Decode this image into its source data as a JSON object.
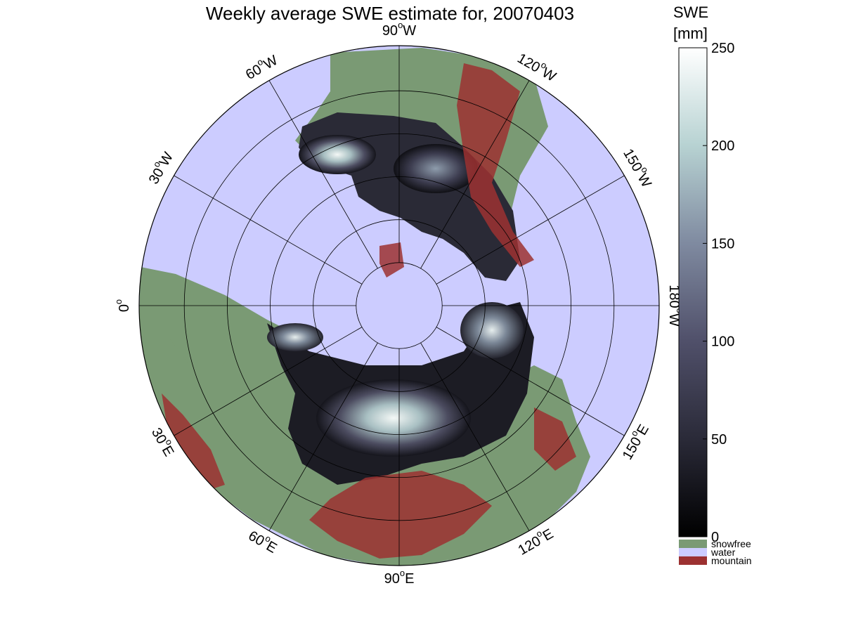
{
  "title": "Weekly average SWE estimate for, 20070403",
  "date": "20070403",
  "map": {
    "projection": "north polar stereographic",
    "center": "North Pole",
    "longitude_labels": [
      {
        "text": "90",
        "dir": "W",
        "lon_w": 90
      },
      {
        "text": "120",
        "dir": "W",
        "lon_w": 120
      },
      {
        "text": "150",
        "dir": "W",
        "lon_w": 150
      },
      {
        "text": "180",
        "dir": "W",
        "lon_w": 180
      },
      {
        "text": "150",
        "dir": "E",
        "lon_w": 210
      },
      {
        "text": "120",
        "dir": "E",
        "lon_w": 240
      },
      {
        "text": "90",
        "dir": "E",
        "lon_w": 270
      },
      {
        "text": "60",
        "dir": "E",
        "lon_w": 300
      },
      {
        "text": "30",
        "dir": "E",
        "lon_w": 330
      },
      {
        "text": "0",
        "dir": "",
        "lon_w": 0
      },
      {
        "text": "30",
        "dir": "W",
        "lon_w": 30
      },
      {
        "text": "60",
        "dir": "W",
        "lon_w": 60
      }
    ],
    "meridian_step_deg": 30,
    "parallel_count": 5,
    "classes": [
      {
        "name": "snowfree",
        "color": "#7a9a74"
      },
      {
        "name": "water",
        "color": "#ccccff"
      },
      {
        "name": "mountain",
        "color": "#9c3131"
      }
    ]
  },
  "colorbar": {
    "title_line1": "SWE",
    "title_line2": "[mm]",
    "min": 0,
    "max": 250,
    "ticks": [
      0,
      50,
      100,
      150,
      200,
      250
    ],
    "gradient_stops": [
      "#000000",
      "#2a2a38",
      "#50506a",
      "#7f8aa0",
      "#b7d2d2",
      "#ffffff"
    ],
    "legend": [
      {
        "label": "snowfree",
        "color": "#7a9a74"
      },
      {
        "label": "water",
        "color": "#ccccff"
      },
      {
        "label": "mountain",
        "color": "#9c3131"
      }
    ]
  },
  "chart_data": {
    "type": "heatmap",
    "title": "Weekly average SWE estimate for, 20070403",
    "colorbar_label": "SWE [mm]",
    "zlim": [
      0,
      250
    ],
    "colorbar_ticks": [
      0,
      50,
      100,
      150,
      200,
      250
    ],
    "categories": [
      "snowfree",
      "water",
      "mountain"
    ],
    "longitude_ticks": [
      "90°W",
      "120°W",
      "150°W",
      "180°W",
      "150°E",
      "120°E",
      "90°E",
      "60°E",
      "30°E",
      "0°",
      "30°W",
      "60°W"
    ]
  }
}
